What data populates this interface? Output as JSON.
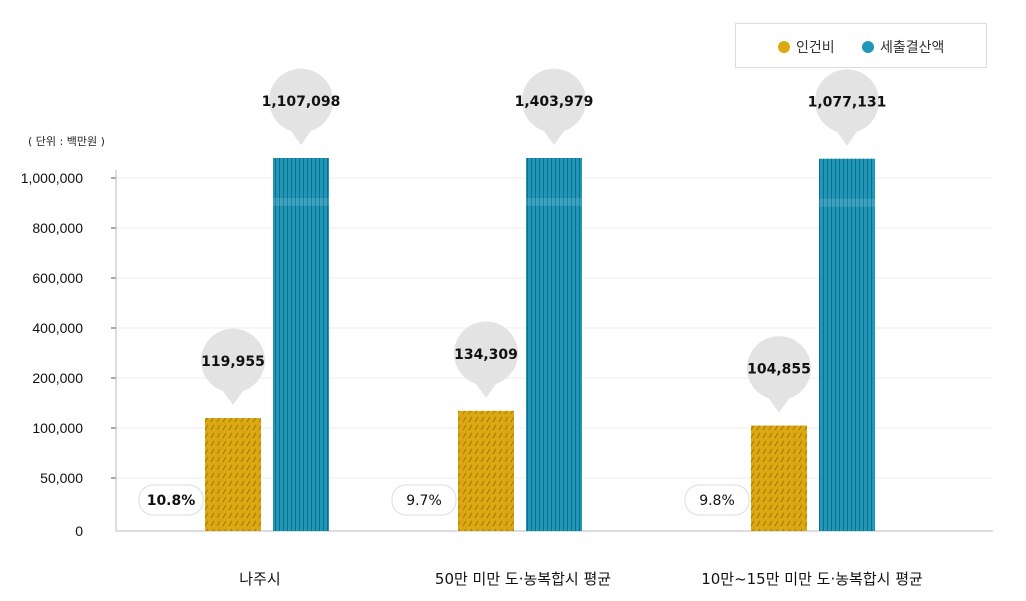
{
  "colors": {
    "personnel": "#dca812",
    "sales": "#1f97b9",
    "callout": "#e3e3e3",
    "grid": "#ececec",
    "axis": "#bbbbbb"
  },
  "legend": [
    {
      "label": "인건비",
      "color": "#dca812"
    },
    {
      "label": "세출결산액",
      "color": "#1f97b9"
    }
  ],
  "unit_label": "( 단위 : 백만원 )",
  "chart_data": {
    "type": "bar",
    "categories": [
      "나주시",
      "50만 미만 도·농복합시 평균",
      "10만~15만 미만 도·농복합시 평균"
    ],
    "series": [
      {
        "name": "인건비",
        "values": [
          119955,
          134309,
          104855
        ],
        "value_labels": [
          "119,955",
          "134,309",
          "104,855"
        ],
        "ratio_labels": [
          "10.8%",
          "9.7%",
          "9.8%"
        ]
      },
      {
        "name": "세출결산액",
        "values": [
          1107098,
          1403979,
          1077131
        ],
        "value_labels": [
          "1,107,098",
          "1,403,979",
          "1,077,131"
        ]
      }
    ],
    "yticks": [
      {
        "label": "1,000,000",
        "value": 1000000
      },
      {
        "label": "800,000",
        "value": 800000
      },
      {
        "label": "600,000",
        "value": 600000
      },
      {
        "label": "400,000",
        "value": 400000
      },
      {
        "label": "200,000",
        "value": 200000
      },
      {
        "label": "100,000",
        "value": 100000
      },
      {
        "label": "50,000",
        "value": 50000
      },
      {
        "label": "0",
        "value": 0
      }
    ],
    "y_scale": "non-linear (broken axis)",
    "grid": true,
    "legend_position": "top-right"
  }
}
